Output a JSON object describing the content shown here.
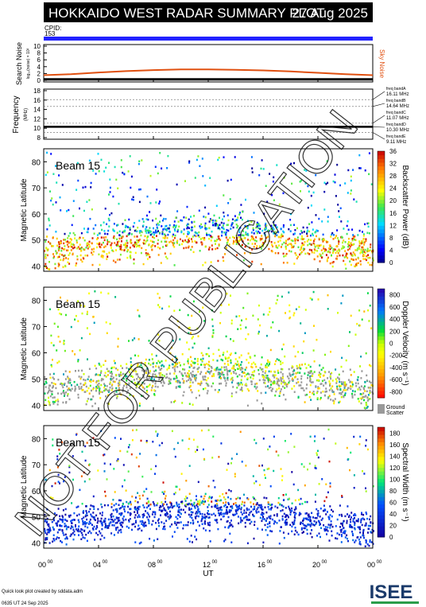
{
  "header": {
    "title": "HOKKAIDO WEST RADAR SUMMARY PLOT",
    "date": "27 Aug 2025",
    "cpid_label": "CPID:",
    "cpid_value": "153"
  },
  "colors": {
    "header_bg": "#000000",
    "cpid_bar": "#2222ff",
    "sky_noise": "#e05010",
    "ground_scatter": "#999999"
  },
  "chart_data": [
    {
      "type": "scatter",
      "ylabel": "Search Noise",
      "ylabel_sub": "log₁₀(noise) × 10³",
      "ylim": [
        0,
        10
      ],
      "yticks": [
        "0",
        "2",
        "4",
        "6",
        "8",
        "10"
      ],
      "series_label": "Sky Noise",
      "series": [
        {
          "name": "Sky Noise",
          "x": [
            0,
            2,
            4,
            6,
            8,
            10,
            12,
            14,
            16,
            18,
            20,
            22,
            24
          ],
          "values": [
            1.5,
            1.8,
            2.3,
            2.7,
            3.0,
            3.2,
            3.2,
            3.1,
            2.9,
            2.6,
            2.2,
            1.8,
            1.5
          ]
        },
        {
          "name": "",
          "x": [
            0,
            6,
            12,
            18,
            24
          ],
          "values": [
            0.3,
            0.3,
            0.3,
            0.3,
            0.3
          ]
        }
      ]
    },
    {
      "type": "line",
      "ylabel": "Frequency",
      "ylabel_sub": "(MHz)",
      "ylim": [
        8,
        18
      ],
      "yticks": [
        "8",
        "10",
        "12",
        "14",
        "16",
        "18"
      ],
      "freq_bands": [
        {
          "name": "freq bandA",
          "freq": "16.11 MHz",
          "value": 16.11
        },
        {
          "name": "freq bandB",
          "freq": "14.64 MHz",
          "value": 14.64
        },
        {
          "name": "freq bandC",
          "freq": "11.07 MHz",
          "value": 11.07
        },
        {
          "name": "freq bandD",
          "freq": "10.30 MHz",
          "value": 10.3
        },
        {
          "name": "freq bandE",
          "freq": "9.11 MHz",
          "value": 9.11
        }
      ],
      "series": [
        {
          "name": "",
          "x": [
            0,
            24
          ],
          "values": [
            10.3,
            10.3
          ]
        }
      ]
    },
    {
      "type": "heatmap",
      "beam": "Beam 15",
      "ylabel": "Magnetic Latitude",
      "ylim": [
        38,
        85
      ],
      "yticks": [
        "40",
        "50",
        "60",
        "70",
        "80"
      ],
      "colorbar_label": "Backscatter Power (dB)",
      "colorbar_ticks": [
        "0",
        "4",
        "8",
        "12",
        "16",
        "20",
        "24",
        "28",
        "32",
        "36"
      ],
      "colorbar_range": [
        0,
        36
      ]
    },
    {
      "type": "heatmap",
      "beam": "Beam 15",
      "ylabel": "Magnetic Latitude",
      "ylim": [
        38,
        85
      ],
      "yticks": [
        "40",
        "50",
        "60",
        "70",
        "80"
      ],
      "colorbar_label": "Doppler Velocity (m s⁻¹)",
      "colorbar_ticks": [
        "-800",
        "-600",
        "-400",
        "-200",
        "0",
        "200",
        "400",
        "600",
        "800"
      ],
      "colorbar_range": [
        -900,
        900
      ],
      "ground_scatter_label": [
        "Ground",
        "Scatter"
      ]
    },
    {
      "type": "heatmap",
      "beam": "Beam 15",
      "ylabel": "Magnetic Latitude",
      "ylim": [
        38,
        85
      ],
      "yticks": [
        "40",
        "50",
        "60",
        "70",
        "80"
      ],
      "colorbar_label": "Spectral Width (m s⁻¹)",
      "colorbar_ticks": [
        "0",
        "20",
        "40",
        "60",
        "80",
        "100",
        "120",
        "140",
        "160",
        "180"
      ],
      "colorbar_range": [
        0,
        190
      ]
    }
  ],
  "x_axis": {
    "label": "UT",
    "ticks": [
      {
        "h": "00",
        "m": "00"
      },
      {
        "h": "04",
        "m": "00"
      },
      {
        "h": "08",
        "m": "00"
      },
      {
        "h": "12",
        "m": "00"
      },
      {
        "h": "16",
        "m": "00"
      },
      {
        "h": "20",
        "m": "00"
      },
      {
        "h": "00",
        "m": "00"
      }
    ]
  },
  "watermark": "NOT FOR PUBLICATION",
  "footer": {
    "credit": "Quick look plot created by sddata.adm",
    "timestamp": "0635 UT 24 Sep 2025",
    "logo": "ISEE"
  }
}
